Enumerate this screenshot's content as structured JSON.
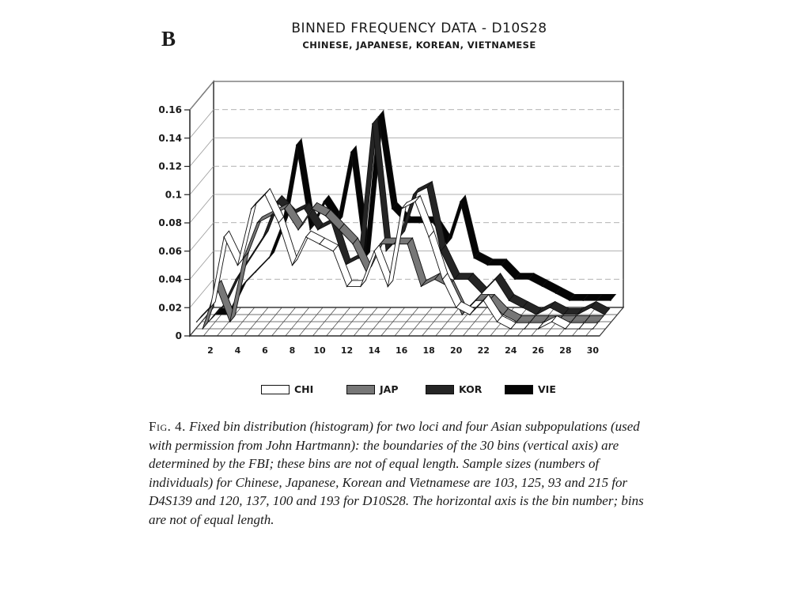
{
  "panel_label": "B",
  "chart_data": {
    "type": "line",
    "title": "BINNED FREQUENCY DATA - D10S28",
    "subtitle": "CHINESE, JAPANESE, KOREAN, VIETNAMESE",
    "xlabel": "",
    "ylabel": "",
    "ylim": [
      0,
      0.16
    ],
    "y_ticks": [
      "0",
      "0.02",
      "0.04",
      "0.06",
      "0.08",
      "0.1",
      "0.12",
      "0.14",
      "0.16"
    ],
    "y_tick_values": [
      0,
      0.02,
      0.04,
      0.06,
      0.08,
      0.1,
      0.12,
      0.14,
      0.16
    ],
    "x_ticks": [
      "2",
      "4",
      "6",
      "8",
      "10",
      "12",
      "14",
      "16",
      "18",
      "20",
      "22",
      "24",
      "26",
      "28",
      "30"
    ],
    "x_tick_values": [
      2,
      4,
      6,
      8,
      10,
      12,
      14,
      16,
      18,
      20,
      22,
      24,
      26,
      28,
      30
    ],
    "x": [
      1,
      2,
      3,
      4,
      5,
      6,
      7,
      8,
      9,
      10,
      11,
      12,
      13,
      14,
      15,
      16,
      17,
      18,
      19,
      20,
      21,
      22,
      23,
      24,
      25,
      26,
      27,
      28,
      29,
      30
    ],
    "legend_position": "bottom",
    "grid": true,
    "series": [
      {
        "name": "CHI",
        "color": "#ffffff",
        "values": [
          0.01,
          0.02,
          0.07,
          0.05,
          0.09,
          0.1,
          0.08,
          0.05,
          0.07,
          0.065,
          0.06,
          0.035,
          0.035,
          0.06,
          0.035,
          0.09,
          0.095,
          0.07,
          0.04,
          0.02,
          0.015,
          0.025,
          0.01,
          0.005,
          0.005,
          0.005,
          0.01,
          0.005,
          0.005,
          0.005
        ]
      },
      {
        "name": "JAP",
        "color": "#777777",
        "values": [
          0.0,
          0.03,
          0.005,
          0.05,
          0.075,
          0.08,
          0.085,
          0.07,
          0.085,
          0.08,
          0.07,
          0.06,
          0.04,
          0.06,
          0.06,
          0.06,
          0.03,
          0.035,
          0.03,
          0.01,
          0.02,
          0.02,
          0.01,
          0.005,
          0.005,
          0.005,
          0.005,
          0.005,
          0.005,
          0.005
        ]
      },
      {
        "name": "KOR",
        "color": "#252525",
        "values": [
          0.0,
          0.01,
          0.03,
          0.045,
          0.06,
          0.085,
          0.075,
          0.08,
          0.065,
          0.07,
          0.04,
          0.045,
          0.14,
          0.05,
          0.06,
          0.09,
          0.095,
          0.05,
          0.03,
          0.03,
          0.02,
          0.03,
          0.015,
          0.01,
          0.005,
          0.01,
          0.005,
          0.005,
          0.01,
          0.005
        ]
      },
      {
        "name": "VIE",
        "color": "#050505",
        "values": [
          0.0,
          0.0,
          0.02,
          0.03,
          0.04,
          0.065,
          0.12,
          0.06,
          0.08,
          0.065,
          0.115,
          0.04,
          0.14,
          0.075,
          0.065,
          0.065,
          0.065,
          0.05,
          0.08,
          0.04,
          0.035,
          0.035,
          0.025,
          0.025,
          0.02,
          0.015,
          0.01,
          0.01,
          0.01,
          0.01
        ]
      }
    ]
  },
  "caption": {
    "label": "Fig. 4.",
    "text": "Fixed bin distribution (histogram) for two loci and four Asian subpopulations (used with permission from John Hartmann): the boundaries of the 30 bins (vertical axis) are determined by the FBI; these bins are not of equal length. Sample sizes (numbers of individuals) for Chinese, Japanese, Korean and Vietnamese are 103, 125, 93 and 215 for D4S139 and 120, 137, 100 and 193 for D10S28. The horizontal axis is the bin number; bins are not of equal length."
  }
}
